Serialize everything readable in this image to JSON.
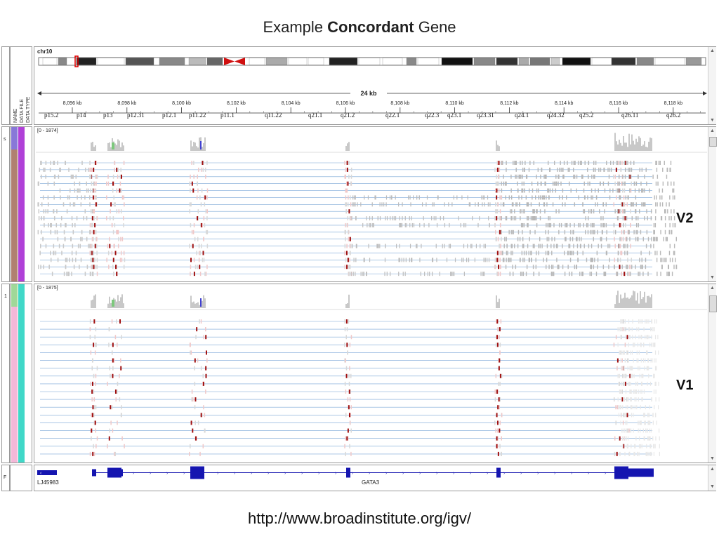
{
  "slide": {
    "title_prefix": "Example ",
    "title_bold": "Concordant",
    "title_suffix": " Gene",
    "url": "http://www.broadinstitute.org/igv/"
  },
  "igv": {
    "chromosome": "chr10",
    "bands": [
      "p15.2",
      "p14",
      "p13",
      "p12.31",
      "p12.1",
      "p11.22",
      "p11.1",
      "q11.22",
      "q21.1",
      "q21.2",
      "q22.1",
      "q22.3",
      "q23.1",
      "q23.31",
      "q24.1",
      "q24.32",
      "q25.2",
      "q26.11",
      "q26.2"
    ],
    "span_label": "24 kb",
    "ruler_ticks": [
      "8,096 kb",
      "8,098 kb",
      "8,100 kb",
      "8,102 kb",
      "8,104 kb",
      "8,106 kb",
      "8,108 kb",
      "8,110 kb",
      "8,112 kb",
      "8,114 kb",
      "8,116 kb",
      "8,118 kb"
    ],
    "attribute_headers": [
      "NAME",
      "DATA FILE",
      "DATA TYPE"
    ],
    "track1": {
      "range": "[0 - 1874]",
      "label": "V2",
      "side_letter": "s"
    },
    "track2": {
      "range": "[0 - 1875]",
      "label": "V1",
      "side_letter": "1"
    },
    "gene_track": {
      "side_letter": "F",
      "left_gene": "LJ45983",
      "gene": "GATA3"
    },
    "colors": {
      "splice_line": "#4a86c8",
      "junction_red": "#a01010",
      "coverage_gray": "#c8c8c8",
      "gene_blue": "#1515b0",
      "attr_purple": "#b040d8",
      "attr_brown": "#b08070",
      "attr_pink": "#f4b8d8",
      "attr_teal": "#40d8c8"
    }
  }
}
